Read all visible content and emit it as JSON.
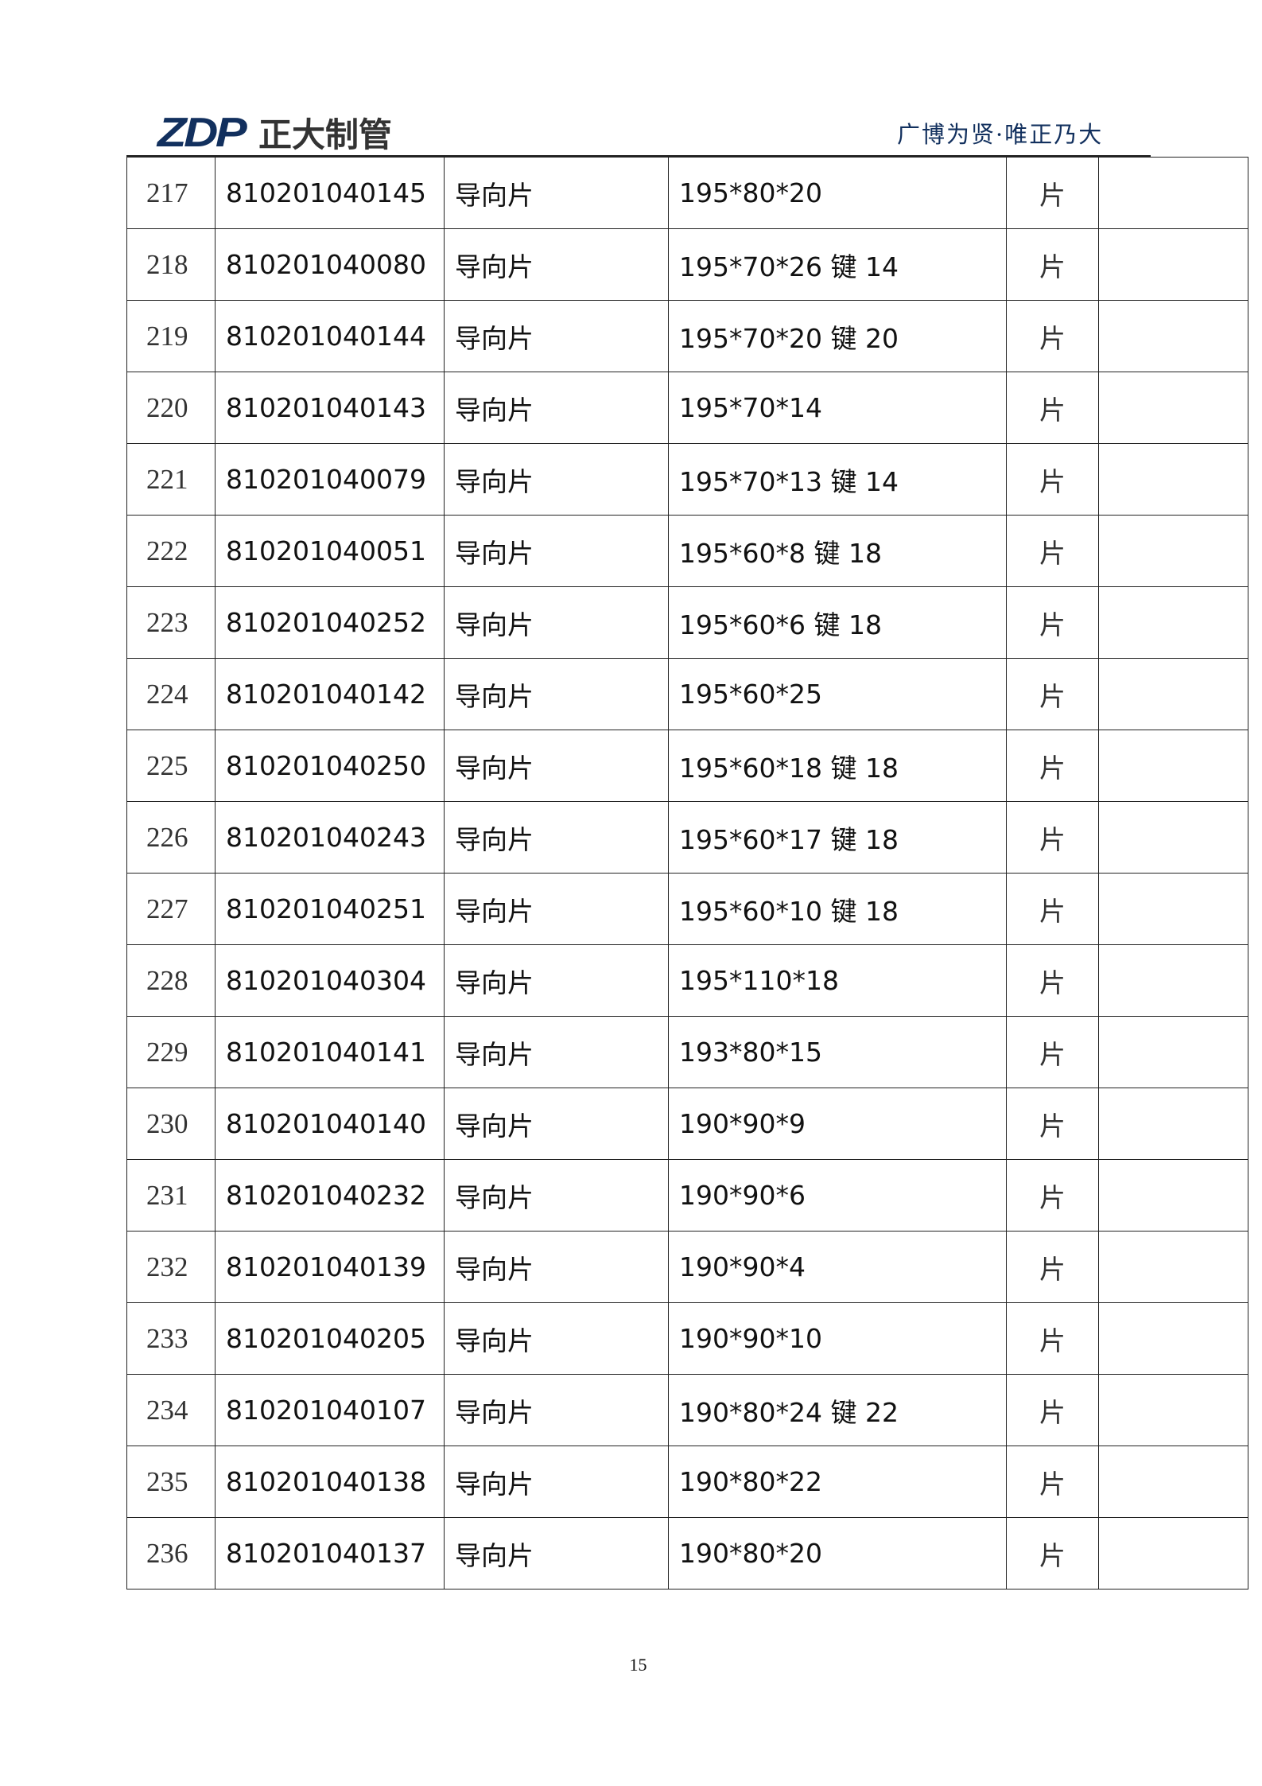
{
  "header": {
    "logo_text": "ZDP",
    "company": "正大制管",
    "slogan": "广博为贤·唯正乃大",
    "brand_color": "#12305e"
  },
  "rows": [
    {
      "no": "217",
      "code": "810201040145",
      "name": "导向片",
      "spec": "195*80*20",
      "unit": "片",
      "note": ""
    },
    {
      "no": "218",
      "code": "810201040080",
      "name": "导向片",
      "spec": "195*70*26 键 14",
      "unit": "片",
      "note": ""
    },
    {
      "no": "219",
      "code": "810201040144",
      "name": "导向片",
      "spec": "195*70*20 键 20",
      "unit": "片",
      "note": ""
    },
    {
      "no": "220",
      "code": "810201040143",
      "name": "导向片",
      "spec": "195*70*14",
      "unit": "片",
      "note": ""
    },
    {
      "no": "221",
      "code": "810201040079",
      "name": "导向片",
      "spec": "195*70*13 键 14",
      "unit": "片",
      "note": ""
    },
    {
      "no": "222",
      "code": "810201040051",
      "name": "导向片",
      "spec": "195*60*8 键 18",
      "unit": "片",
      "note": ""
    },
    {
      "no": "223",
      "code": "810201040252",
      "name": "导向片",
      "spec": "195*60*6 键 18",
      "unit": "片",
      "note": ""
    },
    {
      "no": "224",
      "code": "810201040142",
      "name": "导向片",
      "spec": "195*60*25",
      "unit": "片",
      "note": ""
    },
    {
      "no": "225",
      "code": "810201040250",
      "name": "导向片",
      "spec": "195*60*18 键 18",
      "unit": "片",
      "note": ""
    },
    {
      "no": "226",
      "code": "810201040243",
      "name": "导向片",
      "spec": "195*60*17 键 18",
      "unit": "片",
      "note": ""
    },
    {
      "no": "227",
      "code": "810201040251",
      "name": "导向片",
      "spec": "195*60*10 键 18",
      "unit": "片",
      "note": ""
    },
    {
      "no": "228",
      "code": "810201040304",
      "name": "导向片",
      "spec": "195*110*18",
      "unit": "片",
      "note": ""
    },
    {
      "no": "229",
      "code": "810201040141",
      "name": "导向片",
      "spec": "193*80*15",
      "unit": "片",
      "note": ""
    },
    {
      "no": "230",
      "code": "810201040140",
      "name": "导向片",
      "spec": "190*90*9",
      "unit": "片",
      "note": ""
    },
    {
      "no": "231",
      "code": "810201040232",
      "name": "导向片",
      "spec": "190*90*6",
      "unit": "片",
      "note": ""
    },
    {
      "no": "232",
      "code": "810201040139",
      "name": "导向片",
      "spec": "190*90*4",
      "unit": "片",
      "note": ""
    },
    {
      "no": "233",
      "code": "810201040205",
      "name": "导向片",
      "spec": "190*90*10",
      "unit": "片",
      "note": ""
    },
    {
      "no": "234",
      "code": "810201040107",
      "name": "导向片",
      "spec": "190*80*24 键 22",
      "unit": "片",
      "note": ""
    },
    {
      "no": "235",
      "code": "810201040138",
      "name": "导向片",
      "spec": "190*80*22",
      "unit": "片",
      "note": ""
    },
    {
      "no": "236",
      "code": "810201040137",
      "name": "导向片",
      "spec": "190*80*20",
      "unit": "片",
      "note": ""
    }
  ],
  "footer": {
    "page_number": "15"
  }
}
